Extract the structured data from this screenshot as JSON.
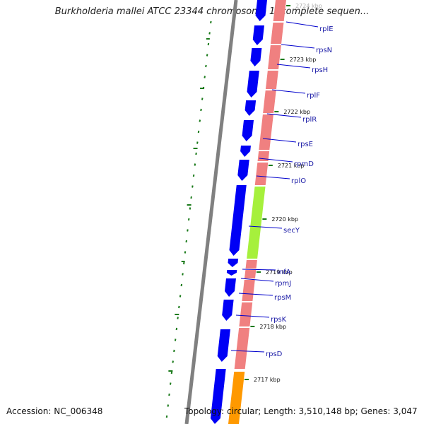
{
  "header": {
    "title": "Burkholderia mallei ATCC 23344 chromosome 1, complete sequen..."
  },
  "footer": {
    "accession": "Accession: NC_006348",
    "summary": "Topology: circular; Length: 3,510,148 bp; Genes: 3,047"
  },
  "genes": [
    {
      "id": "rplE",
      "label": "rplE",
      "track_color": "#f08080"
    },
    {
      "id": "rpsN",
      "label": "rpsN",
      "track_color": "#f08080"
    },
    {
      "id": "rpsH",
      "label": "rpsH",
      "track_color": "#f08080"
    },
    {
      "id": "rplF",
      "label": "rplF",
      "track_color": "#f08080"
    },
    {
      "id": "rplR",
      "label": "rplR",
      "track_color": "#f08080"
    },
    {
      "id": "rpsE",
      "label": "rpsE",
      "track_color": "#f08080"
    },
    {
      "id": "rpmD",
      "label": "rpmD",
      "track_color": "#f08080"
    },
    {
      "id": "rplO",
      "label": "rplO",
      "track_color": "#f08080"
    },
    {
      "id": "secY",
      "label": "secY",
      "track_color": "#a6f03c"
    },
    {
      "id": "infA",
      "label": "infA",
      "track_color": "#f08080"
    },
    {
      "id": "rpmJ",
      "label": "rpmJ",
      "track_color": "#f08080"
    },
    {
      "id": "rpsM",
      "label": "rpsM",
      "track_color": "#f08080"
    },
    {
      "id": "rpsK",
      "label": "rpsK",
      "track_color": "#f08080"
    },
    {
      "id": "rpsD",
      "label": "rpsD",
      "track_color": "#f08080"
    }
  ],
  "ticks": [
    {
      "label": "2724 kbp",
      "faded": true
    },
    {
      "label": "2723 kbp"
    },
    {
      "label": "2722 kbp"
    },
    {
      "label": "2721 kbp"
    },
    {
      "label": "2720 kbp"
    },
    {
      "label": "2719 kbp"
    },
    {
      "label": "2718 kbp"
    },
    {
      "label": "2717 kbp"
    }
  ],
  "colors": {
    "cds": "#0000f5",
    "track_red": "#f08080",
    "track_green": "#a6f03c",
    "track_orange": "#ff9900",
    "backbone": "#808080",
    "gc_skew": "#1a7a1a",
    "label_line": "#0000cc",
    "tick": "#1a7a1a"
  }
}
